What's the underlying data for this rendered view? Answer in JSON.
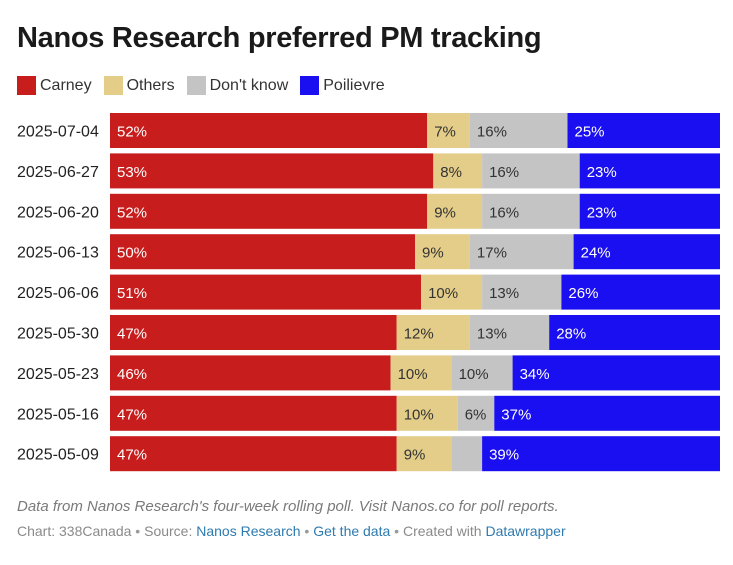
{
  "chart_data": {
    "type": "bar",
    "orientation": "horizontal",
    "stacked": true,
    "title": "Nanos Research preferred PM tracking",
    "categories": [
      "2025-07-04",
      "2025-06-27",
      "2025-06-20",
      "2025-06-13",
      "2025-06-06",
      "2025-05-30",
      "2025-05-23",
      "2025-05-16",
      "2025-05-09"
    ],
    "series": [
      {
        "name": "Carney",
        "color": "#c71e1d",
        "values": [
          52,
          53,
          52,
          50,
          51,
          47,
          46,
          47,
          47
        ],
        "labels": [
          "52%",
          "53%",
          "52%",
          "50%",
          "51%",
          "47%",
          "46%",
          "47%",
          "47%"
        ]
      },
      {
        "name": "Others",
        "color": "#e3cd89",
        "values": [
          7,
          8,
          9,
          9,
          10,
          12,
          10,
          10,
          9
        ],
        "labels": [
          "7%",
          "8%",
          "9%",
          "9%",
          "10%",
          "12%",
          "10%",
          "10%",
          "9%"
        ]
      },
      {
        "name": "Don't know",
        "color": "#c4c4c4",
        "values": [
          16,
          16,
          16,
          17,
          13,
          13,
          10,
          6,
          5
        ],
        "labels": [
          "16%",
          "16%",
          "16%",
          "17%",
          "13%",
          "13%",
          "10%",
          "6%",
          ""
        ]
      },
      {
        "name": "Poilievre",
        "color": "#1a0ff0",
        "values": [
          25,
          23,
          23,
          24,
          26,
          28,
          34,
          37,
          39
        ],
        "labels": [
          "25%",
          "23%",
          "23%",
          "24%",
          "26%",
          "28%",
          "34%",
          "37%",
          "39%"
        ]
      }
    ],
    "xlim": [
      0,
      100
    ],
    "legend_position": "top-left",
    "grid": false
  },
  "footnote": "Data from Nanos Research's four-week rolling poll. Visit Nanos.co for poll reports.",
  "credits": {
    "chart_by": "Chart: 338Canada",
    "separator": " • ",
    "source_label": "Source: ",
    "source_link": "Nanos Research",
    "get_data": "Get the data",
    "created_label": "Created with ",
    "created_link": "Datawrapper"
  }
}
